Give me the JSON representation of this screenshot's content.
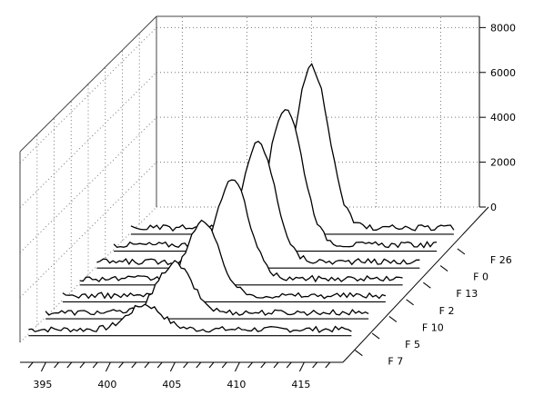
{
  "chart_data": {
    "type": "line",
    "title": "",
    "xlabel": "",
    "ylabel": "",
    "x_ticks": [
      395,
      400,
      405,
      410,
      415
    ],
    "z_ticks": [
      0,
      2000,
      4000,
      6000,
      8000
    ],
    "xlim": [
      393,
      418
    ],
    "zlim": [
      0,
      8500
    ],
    "grid": true,
    "series": [
      {
        "name": "F 7",
        "peak_x": 402.0,
        "peak_value": 1100
      },
      {
        "name": "F 5",
        "peak_x": 403.0,
        "peak_value": 2200
      },
      {
        "name": "F 10",
        "peak_x": 403.8,
        "peak_value": 3300
      },
      {
        "name": "F 2",
        "peak_x": 404.8,
        "peak_value": 4400
      },
      {
        "name": "F 13",
        "peak_x": 405.5,
        "peak_value": 5300
      },
      {
        "name": "F 0",
        "peak_x": 406.3,
        "peak_value": 6100
      },
      {
        "name": "F 26",
        "peak_x": 407.0,
        "peak_value": 7200
      }
    ]
  }
}
